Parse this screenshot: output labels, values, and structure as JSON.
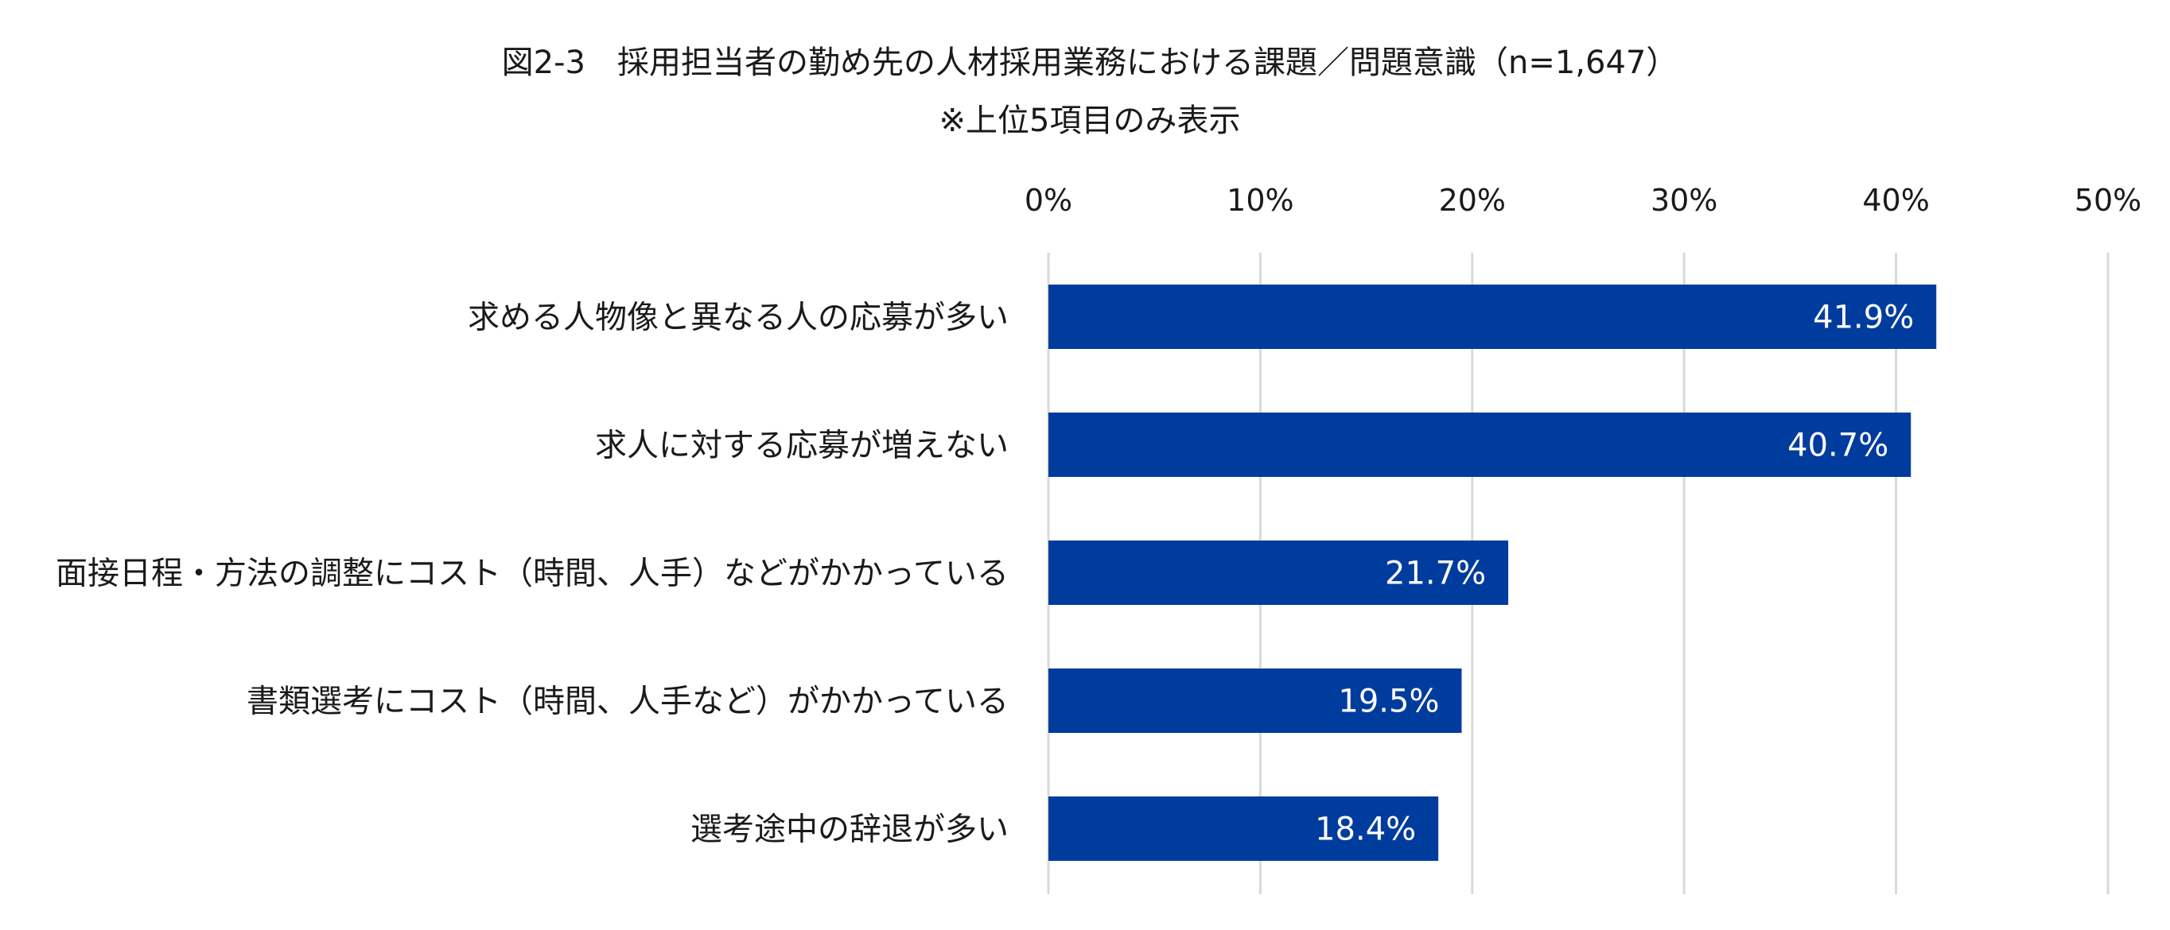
{
  "chart_data": {
    "type": "bar",
    "orientation": "horizontal",
    "title": "図2-3　採用担当者の勤め先の人材採用業務における課題／問題意識（n=1,647）",
    "subtitle": "※上位5項目のみ表示",
    "xlabel": "",
    "ylabel": "",
    "xlim": [
      0,
      50
    ],
    "x_ticks": [
      0,
      10,
      20,
      30,
      40,
      50
    ],
    "x_tick_labels": [
      "0%",
      "10%",
      "20%",
      "30%",
      "40%",
      "50%"
    ],
    "axis_position": "top",
    "grid": true,
    "legend": "none",
    "bar_color": "#003C9E",
    "grid_color": "#D9D9D9",
    "value_label_color": "#FFFFFF",
    "categories": [
      "求める人物像と異なる人の応募が多い",
      "求人に対する応募が増えない",
      "面接日程・方法の調整にコスト（時間、人手）などがかかっている",
      "書類選考にコスト（時間、人手など）がかかっている",
      "選考途中の辞退が多い"
    ],
    "values": [
      41.9,
      40.7,
      21.7,
      19.5,
      18.4
    ],
    "value_labels": [
      "41.9%",
      "40.7%",
      "21.7%",
      "19.5%",
      "18.4%"
    ]
  }
}
